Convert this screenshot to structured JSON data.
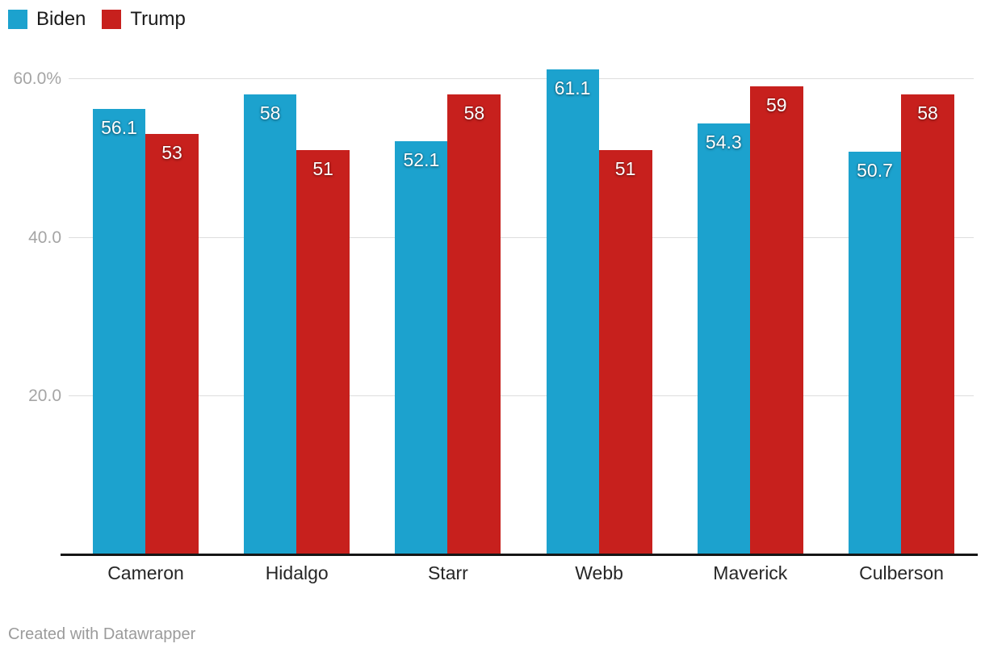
{
  "chart_data": {
    "type": "bar",
    "subtype": "grouped",
    "categories": [
      "Cameron",
      "Hidalgo",
      "Starr",
      "Webb",
      "Maverick",
      "Culberson"
    ],
    "series": [
      {
        "name": "Biden",
        "color": "#1CA2CE",
        "values": [
          56.1,
          58,
          52.1,
          61.1,
          54.3,
          50.7
        ],
        "labels": [
          "56.1",
          "58",
          "52.1",
          "61.1",
          "54.3",
          "50.7"
        ]
      },
      {
        "name": "Trump",
        "color": "#C7201D",
        "values": [
          53,
          51,
          58,
          51,
          59,
          58
        ],
        "labels": [
          "53",
          "51",
          "58",
          "51",
          "59",
          "58"
        ]
      }
    ],
    "ylim": [
      0,
      61.5
    ],
    "yticks": [
      {
        "value": 20,
        "label": "20.0"
      },
      {
        "value": 40,
        "label": "40.0"
      },
      {
        "value": 60,
        "label": "60.0%"
      }
    ],
    "grid": "horizontal",
    "legend_position": "top-left",
    "value_labels": "inside-top",
    "title": "",
    "xlabel": "",
    "ylabel": ""
  },
  "footer": {
    "text": "Created with Datawrapper"
  }
}
